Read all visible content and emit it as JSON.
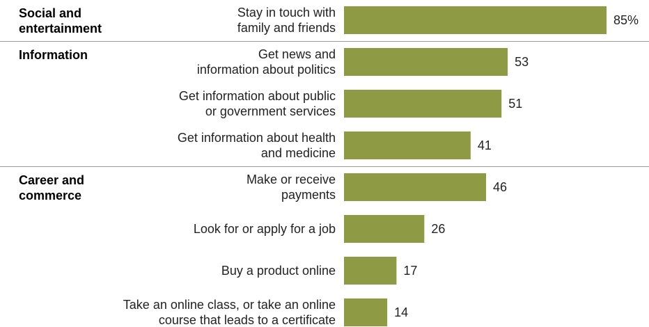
{
  "chart_data": {
    "type": "bar",
    "orientation": "horizontal",
    "bar_color": "#8f9a45",
    "value_suffix_first": "%",
    "groups": [
      {
        "label": "Social and\nentertainment",
        "start": 0,
        "end": 0
      },
      {
        "label": "Information",
        "start": 1,
        "end": 3
      },
      {
        "label": "Career and\ncommerce",
        "start": 4,
        "end": 7
      }
    ],
    "categories": [
      "Stay in touch with\nfamily and friends",
      "Get news and\ninformation about politics",
      "Get information about public\nor government services",
      "Get information about health\nand medicine",
      "Make or receive\npayments",
      "Look for or apply for a job",
      "Buy a product online",
      "Take an online class, or take an online\ncourse that leads to a certificate"
    ],
    "values": [
      85,
      53,
      51,
      41,
      46,
      26,
      17,
      14
    ],
    "value_labels": [
      "85%",
      "53",
      "51",
      "41",
      "46",
      "26",
      "17",
      "14"
    ],
    "xlim": [
      0,
      85
    ]
  }
}
